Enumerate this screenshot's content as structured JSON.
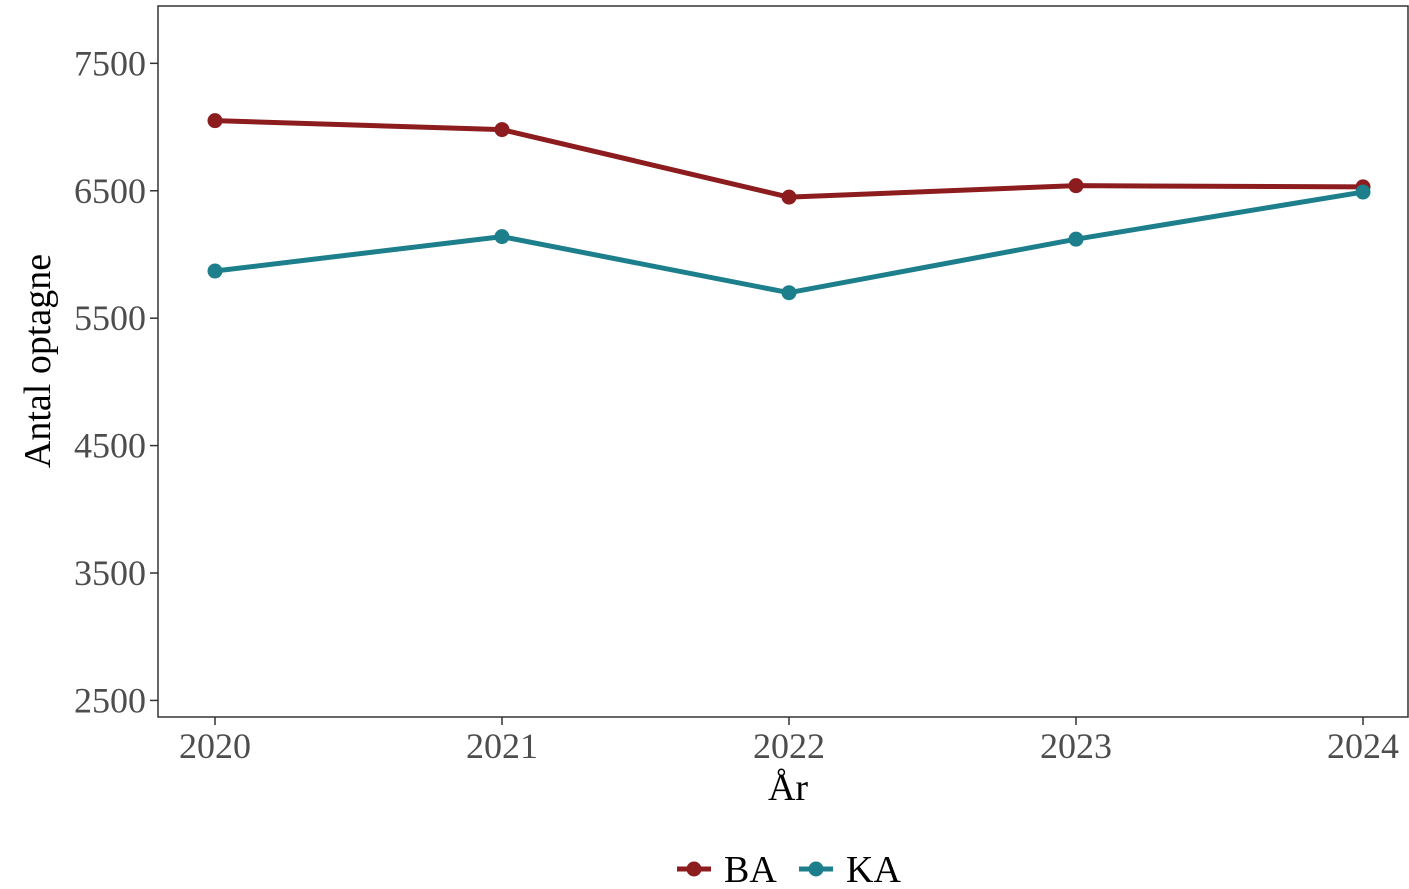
{
  "chart_data": {
    "type": "line",
    "x": [
      "2020",
      "2021",
      "2022",
      "2023",
      "2024"
    ],
    "series": [
      {
        "name": "BA",
        "color": "#8c1c1e",
        "values": [
          7050,
          6980,
          6450,
          6540,
          6530
        ]
      },
      {
        "name": "KA",
        "color": "#1d7f8c",
        "values": [
          5870,
          6140,
          5700,
          6120,
          6490
        ]
      }
    ],
    "xlabel": "År",
    "ylabel": "Antal optagne",
    "ylim": [
      2370,
      7950
    ],
    "yticks": [
      2500,
      3500,
      4500,
      5500,
      6500,
      7500
    ],
    "grid": false,
    "legend_position": "bottom",
    "markers": true
  }
}
